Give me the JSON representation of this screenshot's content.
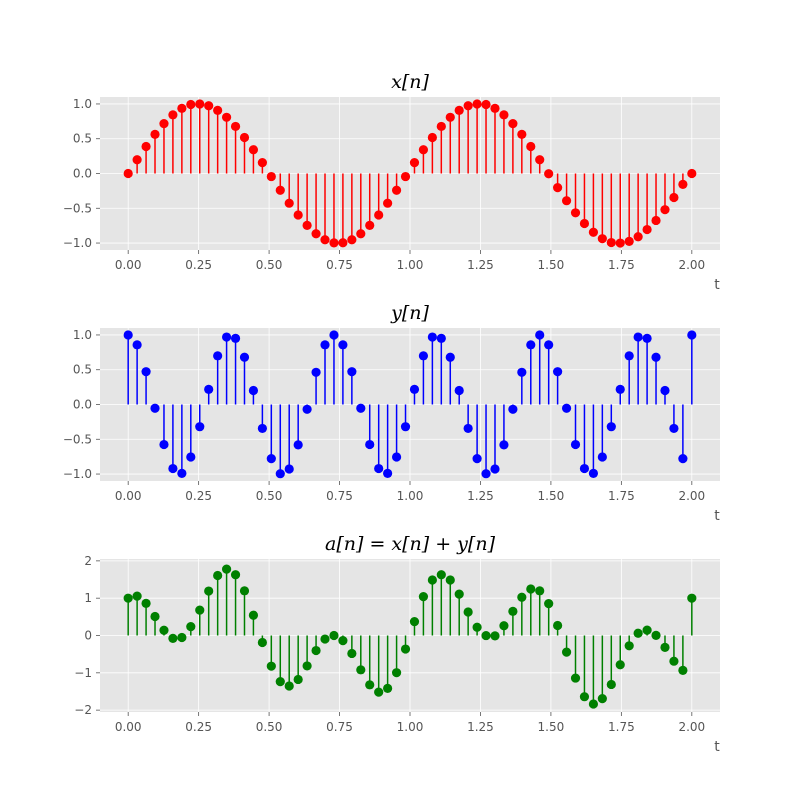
{
  "chart_data": [
    {
      "type": "stem",
      "title": "x[n]",
      "xlabel": "t",
      "ylabel": "",
      "color": "#ff0000",
      "xlim": [
        -0.1,
        2.1
      ],
      "ylim": [
        -1.1,
        1.1
      ],
      "xticks": [
        "0.00",
        "0.25",
        "0.50",
        "0.75",
        "1.00",
        "1.25",
        "1.50",
        "1.75",
        "2.00"
      ],
      "yticks": [
        "−1.0",
        "−0.5",
        "0.0",
        "0.5",
        "1.0"
      ],
      "grid": true,
      "x": [
        0,
        0.0317,
        0.0635,
        0.0952,
        0.127,
        0.1587,
        0.1905,
        0.2222,
        0.254,
        0.2857,
        0.3175,
        0.3492,
        0.381,
        0.4127,
        0.4444,
        0.4762,
        0.5079,
        0.5397,
        0.5714,
        0.6032,
        0.6349,
        0.6667,
        0.6984,
        0.7302,
        0.7619,
        0.7937,
        0.8254,
        0.8571,
        0.8889,
        0.9206,
        0.9524,
        0.9841,
        1.0159,
        1.0476,
        1.0794,
        1.1111,
        1.1429,
        1.1746,
        1.2063,
        1.2381,
        1.2698,
        1.3016,
        1.3333,
        1.3651,
        1.3968,
        1.4286,
        1.4603,
        1.4921,
        1.5238,
        1.5556,
        1.5873,
        1.619,
        1.6508,
        1.6825,
        1.7143,
        1.746,
        1.7778,
        1.8095,
        1.8413,
        1.873,
        1.9048,
        1.9365,
        1.9683,
        2.0
      ],
      "values": [
        0,
        0.198,
        0.388,
        0.563,
        0.717,
        0.843,
        0.937,
        0.993,
        1.0,
        0.974,
        0.908,
        0.808,
        0.677,
        0.518,
        0.342,
        0.156,
        -0.044,
        -0.241,
        -0.427,
        -0.597,
        -0.746,
        -0.866,
        -0.953,
        -0.998,
        -0.996,
        -0.953,
        -0.866,
        -0.746,
        -0.597,
        -0.427,
        -0.241,
        -0.044,
        0.156,
        0.342,
        0.518,
        0.677,
        0.808,
        0.908,
        0.974,
        1.0,
        0.993,
        0.937,
        0.843,
        0.717,
        0.563,
        0.388,
        0.198,
        -0.004,
        -0.203,
        -0.391,
        -0.565,
        -0.719,
        -0.845,
        -0.937,
        -0.993,
        -1.0,
        -0.976,
        -0.91,
        -0.806,
        -0.675,
        -0.52,
        -0.345,
        -0.156,
        0
      ]
    },
    {
      "type": "stem",
      "title": "y[n]",
      "xlabel": "t",
      "ylabel": "",
      "color": "#0000ff",
      "xlim": [
        -0.1,
        2.1
      ],
      "ylim": [
        -1.1,
        1.1
      ],
      "xticks": [
        "0.00",
        "0.25",
        "0.50",
        "0.75",
        "1.00",
        "1.25",
        "1.50",
        "1.75",
        "2.00"
      ],
      "yticks": [
        "−1.0",
        "−0.5",
        "0.0",
        "0.5",
        "1.0"
      ],
      "grid": true,
      "x": [
        0,
        0.0317,
        0.0635,
        0.0952,
        0.127,
        0.1587,
        0.1905,
        0.2222,
        0.254,
        0.2857,
        0.3175,
        0.3492,
        0.381,
        0.4127,
        0.4444,
        0.4762,
        0.5079,
        0.5397,
        0.5714,
        0.6032,
        0.6349,
        0.6667,
        0.6984,
        0.7302,
        0.7619,
        0.7937,
        0.8254,
        0.8571,
        0.8889,
        0.9206,
        0.9524,
        0.9841,
        1.0159,
        1.0476,
        1.0794,
        1.1111,
        1.1429,
        1.1746,
        1.2063,
        1.2381,
        1.2698,
        1.3016,
        1.3333,
        1.3651,
        1.3968,
        1.4286,
        1.4603,
        1.4921,
        1.5238,
        1.5556,
        1.5873,
        1.619,
        1.6508,
        1.6825,
        1.7143,
        1.746,
        1.7778,
        1.8095,
        1.8413,
        1.873,
        1.9048,
        1.9365,
        1.9683,
        2.0
      ],
      "values": [
        1.0,
        0.858,
        0.472,
        -0.054,
        -0.576,
        -0.921,
        -0.99,
        -0.755,
        -0.319,
        0.217,
        0.7,
        0.97,
        0.951,
        0.679,
        0.201,
        -0.344,
        -0.778,
        -0.995,
        -0.927,
        -0.581,
        -0.069,
        0.463,
        0.858,
        0.999,
        0.858,
        0.472,
        -0.054,
        -0.576,
        -0.921,
        -0.99,
        -0.755,
        -0.319,
        0.217,
        0.7,
        0.97,
        0.951,
        0.679,
        0.201,
        -0.344,
        -0.778,
        -0.995,
        -0.927,
        -0.581,
        -0.069,
        0.463,
        0.858,
        0.999,
        0.858,
        0.472,
        -0.054,
        -0.576,
        -0.921,
        -0.99,
        -0.755,
        -0.319,
        0.217,
        0.7,
        0.97,
        0.951,
        0.679,
        0.201,
        -0.344,
        -0.778,
        1.0
      ]
    },
    {
      "type": "stem",
      "title": "a[n] = x[n] + y[n]",
      "xlabel": "t",
      "ylabel": "",
      "color": "#008000",
      "xlim": [
        -0.1,
        2.1
      ],
      "ylim": [
        -2.05,
        2.05
      ],
      "xticks": [
        "0.00",
        "0.25",
        "0.50",
        "0.75",
        "1.00",
        "1.25",
        "1.50",
        "1.75",
        "2.00"
      ],
      "yticks": [
        "−2",
        "−1",
        "0",
        "1",
        "2"
      ],
      "grid": true,
      "x": [
        0,
        0.0317,
        0.0635,
        0.0952,
        0.127,
        0.1587,
        0.1905,
        0.2222,
        0.254,
        0.2857,
        0.3175,
        0.3492,
        0.381,
        0.4127,
        0.4444,
        0.4762,
        0.5079,
        0.5397,
        0.5714,
        0.6032,
        0.6349,
        0.6667,
        0.6984,
        0.7302,
        0.7619,
        0.7937,
        0.8254,
        0.8571,
        0.8889,
        0.9206,
        0.9524,
        0.9841,
        1.0159,
        1.0476,
        1.0794,
        1.1111,
        1.1429,
        1.1746,
        1.2063,
        1.2381,
        1.2698,
        1.3016,
        1.3333,
        1.3651,
        1.3968,
        1.4286,
        1.4603,
        1.4921,
        1.5238,
        1.5556,
        1.5873,
        1.619,
        1.6508,
        1.6825,
        1.7143,
        1.746,
        1.7778,
        1.8095,
        1.8413,
        1.873,
        1.9048,
        1.9365,
        1.9683,
        2.0
      ],
      "values": [
        1.0,
        1.056,
        0.86,
        0.509,
        0.141,
        -0.078,
        -0.053,
        0.238,
        0.681,
        1.191,
        1.608,
        1.778,
        1.628,
        1.197,
        0.543,
        -0.188,
        -0.822,
        -1.236,
        -1.354,
        -1.178,
        -0.815,
        -0.403,
        -0.095,
        0.001,
        -0.138,
        -0.481,
        -0.92,
        -1.322,
        -1.518,
        -1.417,
        -0.996,
        -0.363,
        0.373,
        1.042,
        1.488,
        1.628,
        1.487,
        1.109,
        0.63,
        0.222,
        -0.002,
        -0.01,
        0.262,
        0.648,
        1.026,
        1.246,
        1.197,
        0.854,
        0.269,
        -0.445,
        -1.141,
        -1.64,
        -1.835,
        -1.692,
        -1.312,
        -0.783,
        -0.276,
        0.06,
        0.145,
        0.004,
        -0.319,
        -0.689,
        -0.934,
        1.0
      ]
    }
  ]
}
